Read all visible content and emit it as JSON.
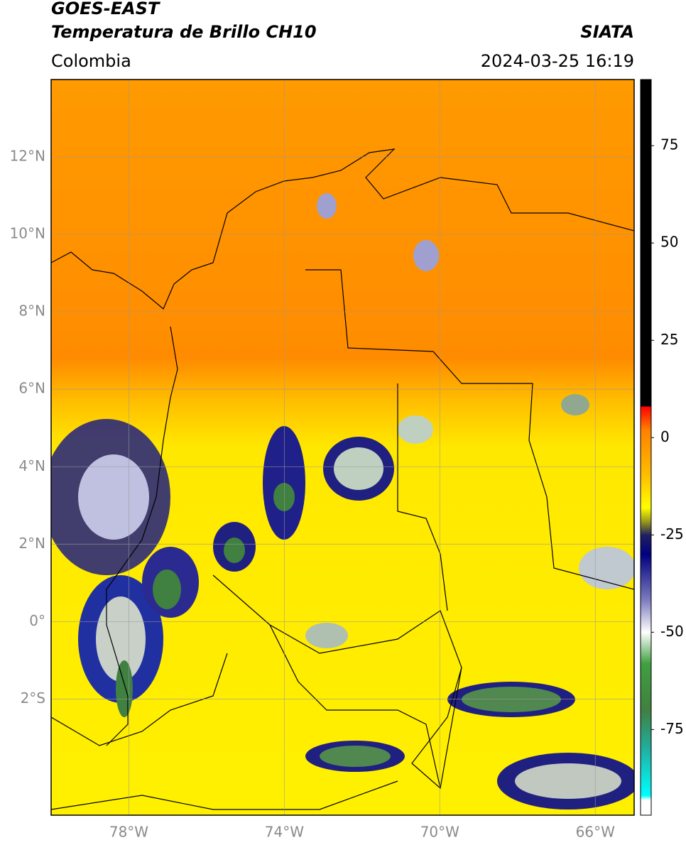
{
  "map": {
    "title": "GOES-EAST",
    "subtitle": "Temperatura de Brillo CH10",
    "region": "Colombia",
    "source": "SIATA",
    "datetime": "2024-03-25 16:19",
    "lonlim": [
      -80,
      -65
    ],
    "latlim": [
      -5,
      14
    ],
    "lonticks": [
      {
        "value": -78,
        "label": "78°W"
      },
      {
        "value": -74,
        "label": "74°W"
      },
      {
        "value": -70,
        "label": "70°W"
      },
      {
        "value": -66,
        "label": "66°W"
      }
    ],
    "latticks": [
      {
        "value": 12,
        "label": "12°N"
      },
      {
        "value": 10,
        "label": "10°N"
      },
      {
        "value": 8,
        "label": "8°N"
      },
      {
        "value": 6,
        "label": "6°N"
      },
      {
        "value": 4,
        "label": "4°N"
      },
      {
        "value": 2,
        "label": "2°N"
      },
      {
        "value": 0,
        "label": "0°"
      },
      {
        "value": -2,
        "label": "2°S"
      }
    ],
    "grid": true,
    "colorbar": {
      "lim": [
        -97,
        92
      ],
      "ticks": [
        75,
        50,
        25,
        0,
        -25,
        -50,
        -75
      ],
      "colormap": [
        [
          92,
          "#000000"
        ],
        [
          8,
          "#000000"
        ],
        [
          8,
          "#ff0000"
        ],
        [
          2,
          "#ff8000"
        ],
        [
          -10,
          "#ffc000"
        ],
        [
          -18,
          "#ffff00"
        ],
        [
          -22,
          "#8a8a20"
        ],
        [
          -25,
          "#202060"
        ],
        [
          -30,
          "#000080"
        ],
        [
          -42,
          "#8080c0"
        ],
        [
          -50,
          "#ffffff"
        ],
        [
          -58,
          "#40a040"
        ],
        [
          -70,
          "#408040"
        ],
        [
          -80,
          "#20b0a0"
        ],
        [
          -92,
          "#00ffff"
        ],
        [
          -93,
          "#ffffff"
        ],
        [
          -97,
          "#ffffff"
        ]
      ]
    }
  }
}
